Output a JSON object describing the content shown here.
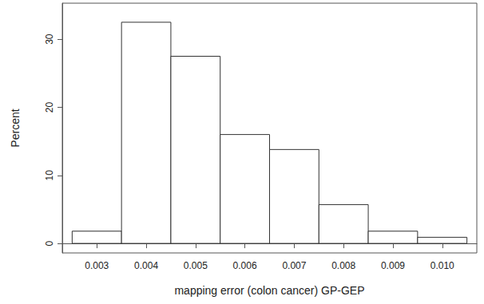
{
  "chart_data": {
    "type": "histogram",
    "xlabel": "mapping error (colon cancer) GP-GEP",
    "ylabel": "Percent",
    "bins": [
      0.0025,
      0.0035,
      0.0045,
      0.0055,
      0.0065,
      0.0075,
      0.0085,
      0.0095,
      0.0105
    ],
    "values": [
      1.8,
      32.5,
      27.5,
      16,
      13.8,
      5.7,
      1.8,
      0.9
    ],
    "color": "#ffffff",
    "xlim": [
      0.0023,
      0.0107
    ],
    "xticks": [
      0.003,
      0.004,
      0.005,
      0.006,
      0.007,
      0.008,
      0.009,
      0.01
    ],
    "ylim": [
      -1.4,
      35.3
    ],
    "yticks": [
      0,
      10,
      20,
      30
    ],
    "grid": false
  }
}
